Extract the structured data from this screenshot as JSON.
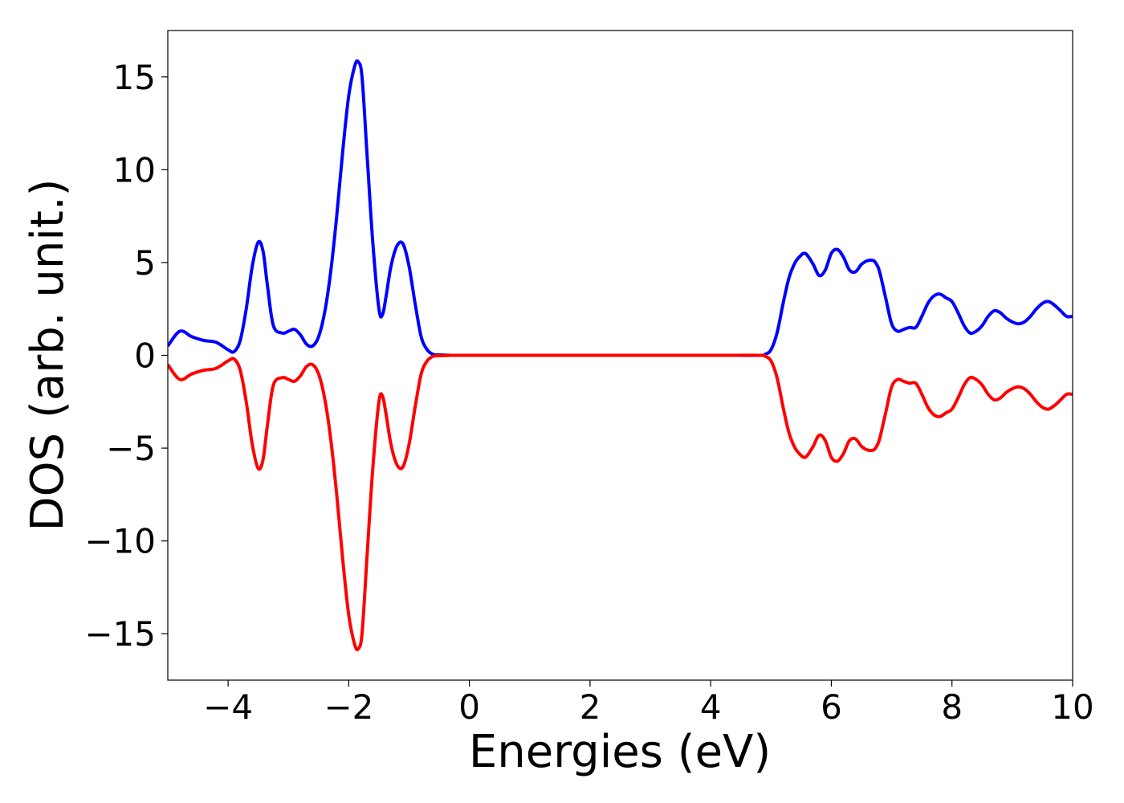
{
  "chart_data": {
    "type": "line",
    "xlabel": "Energies (eV)",
    "ylabel": "DOS (arb. unit.)",
    "xlim": [
      -5,
      10
    ],
    "ylim": [
      -17.5,
      17.5
    ],
    "xticks": [
      -4,
      -2,
      0,
      2,
      4,
      6,
      8,
      10
    ],
    "yticks": [
      -15,
      -10,
      -5,
      0,
      5,
      10,
      15
    ],
    "grid": false,
    "legend": "none",
    "series": [
      {
        "color": "#0000ff",
        "x": [
          -5.0,
          -4.8,
          -4.6,
          -4.4,
          -4.2,
          -4.0,
          -3.9,
          -3.8,
          -3.7,
          -3.6,
          -3.5,
          -3.42,
          -3.35,
          -3.25,
          -3.1,
          -3.0,
          -2.9,
          -2.8,
          -2.7,
          -2.6,
          -2.5,
          -2.4,
          -2.3,
          -2.2,
          -2.1,
          -2.0,
          -1.9,
          -1.84,
          -1.78,
          -1.7,
          -1.6,
          -1.5,
          -1.44,
          -1.38,
          -1.3,
          -1.2,
          -1.1,
          -1.0,
          -0.9,
          -0.8,
          -0.7,
          -0.6,
          -0.5,
          -0.3,
          0.0,
          2.0,
          4.0,
          4.8,
          4.9,
          5.0,
          5.1,
          5.2,
          5.3,
          5.4,
          5.5,
          5.55,
          5.6,
          5.7,
          5.8,
          5.9,
          6.0,
          6.1,
          6.2,
          6.3,
          6.4,
          6.5,
          6.6,
          6.7,
          6.75,
          6.8,
          6.9,
          7.0,
          7.1,
          7.2,
          7.3,
          7.4,
          7.5,
          7.6,
          7.7,
          7.8,
          7.9,
          8.0,
          8.1,
          8.2,
          8.3,
          8.4,
          8.5,
          8.6,
          8.7,
          8.8,
          8.9,
          9.0,
          9.1,
          9.2,
          9.3,
          9.4,
          9.5,
          9.6,
          9.7,
          9.8,
          9.9,
          10.0
        ],
        "y": [
          0.5,
          1.3,
          1.0,
          0.8,
          0.7,
          0.3,
          0.2,
          0.8,
          2.5,
          4.8,
          6.1,
          5.6,
          3.8,
          1.6,
          1.2,
          1.3,
          1.4,
          1.1,
          0.6,
          0.5,
          1.0,
          2.3,
          4.5,
          7.5,
          11.0,
          14.0,
          15.6,
          15.8,
          15.0,
          11.0,
          6.0,
          2.5,
          2.2,
          3.2,
          4.8,
          5.9,
          6.0,
          4.8,
          2.8,
          1.0,
          0.3,
          0.05,
          0.02,
          0.0,
          0.0,
          0.0,
          0.0,
          0.0,
          0.05,
          0.3,
          1.2,
          2.8,
          4.2,
          5.0,
          5.4,
          5.5,
          5.4,
          4.9,
          4.3,
          4.6,
          5.5,
          5.7,
          5.3,
          4.6,
          4.5,
          4.9,
          5.1,
          5.1,
          4.9,
          4.5,
          3.1,
          1.7,
          1.3,
          1.4,
          1.5,
          1.5,
          2.1,
          2.8,
          3.2,
          3.3,
          3.1,
          2.9,
          2.3,
          1.6,
          1.2,
          1.3,
          1.6,
          2.1,
          2.4,
          2.3,
          2.0,
          1.8,
          1.7,
          1.8,
          2.1,
          2.5,
          2.8,
          2.9,
          2.7,
          2.4,
          2.1,
          2.1
        ]
      },
      {
        "color": "#ff0000",
        "x": [
          -5.0,
          -4.8,
          -4.6,
          -4.4,
          -4.2,
          -4.0,
          -3.9,
          -3.8,
          -3.7,
          -3.6,
          -3.5,
          -3.42,
          -3.35,
          -3.25,
          -3.1,
          -3.0,
          -2.9,
          -2.8,
          -2.7,
          -2.6,
          -2.5,
          -2.4,
          -2.3,
          -2.2,
          -2.1,
          -2.0,
          -1.9,
          -1.84,
          -1.78,
          -1.7,
          -1.6,
          -1.5,
          -1.44,
          -1.38,
          -1.3,
          -1.2,
          -1.1,
          -1.0,
          -0.9,
          -0.8,
          -0.7,
          -0.6,
          -0.5,
          -0.3,
          0.0,
          2.0,
          4.0,
          4.8,
          4.9,
          5.0,
          5.1,
          5.2,
          5.3,
          5.4,
          5.5,
          5.55,
          5.6,
          5.7,
          5.8,
          5.9,
          6.0,
          6.1,
          6.2,
          6.3,
          6.4,
          6.5,
          6.6,
          6.7,
          6.75,
          6.8,
          6.9,
          7.0,
          7.1,
          7.2,
          7.3,
          7.4,
          7.5,
          7.6,
          7.7,
          7.8,
          7.9,
          8.0,
          8.1,
          8.2,
          8.3,
          8.4,
          8.5,
          8.6,
          8.7,
          8.8,
          8.9,
          9.0,
          9.1,
          9.2,
          9.3,
          9.4,
          9.5,
          9.6,
          9.7,
          9.8,
          9.9,
          10.0
        ],
        "y": [
          -0.5,
          -1.3,
          -1.0,
          -0.8,
          -0.7,
          -0.3,
          -0.2,
          -0.8,
          -2.5,
          -4.8,
          -6.1,
          -5.6,
          -3.8,
          -1.6,
          -1.2,
          -1.3,
          -1.4,
          -1.1,
          -0.6,
          -0.5,
          -1.0,
          -2.3,
          -4.5,
          -7.5,
          -11.0,
          -14.0,
          -15.6,
          -15.8,
          -15.0,
          -11.0,
          -6.0,
          -2.5,
          -2.2,
          -3.2,
          -4.8,
          -5.9,
          -6.0,
          -4.8,
          -2.8,
          -1.0,
          -0.3,
          -0.05,
          -0.02,
          0.0,
          0.0,
          0.0,
          0.0,
          0.0,
          -0.05,
          -0.3,
          -1.2,
          -2.8,
          -4.2,
          -5.0,
          -5.4,
          -5.5,
          -5.4,
          -4.9,
          -4.3,
          -4.6,
          -5.5,
          -5.7,
          -5.3,
          -4.6,
          -4.5,
          -4.9,
          -5.1,
          -5.1,
          -4.9,
          -4.5,
          -3.1,
          -1.7,
          -1.3,
          -1.4,
          -1.5,
          -1.5,
          -2.1,
          -2.8,
          -3.2,
          -3.3,
          -3.1,
          -2.9,
          -2.3,
          -1.6,
          -1.2,
          -1.3,
          -1.6,
          -2.1,
          -2.4,
          -2.3,
          -2.0,
          -1.8,
          -1.7,
          -1.8,
          -2.1,
          -2.5,
          -2.8,
          -2.9,
          -2.7,
          -2.4,
          -2.1,
          -2.1
        ]
      }
    ]
  }
}
